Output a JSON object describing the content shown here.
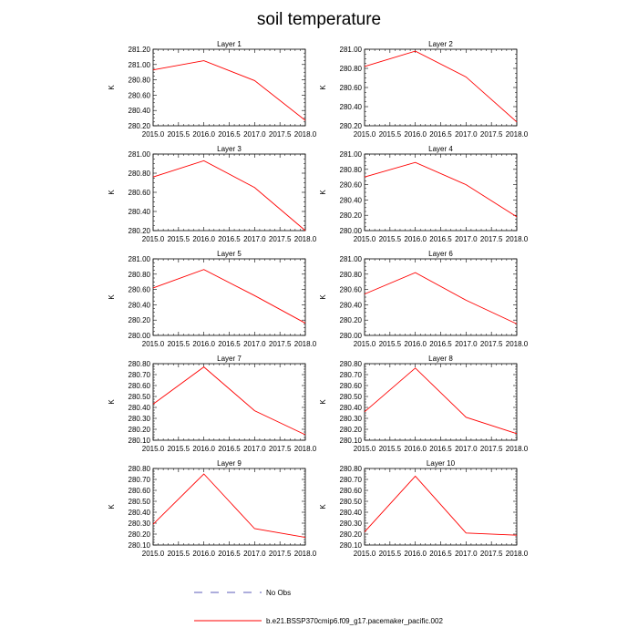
{
  "figure": {
    "title": "soil temperature"
  },
  "legend": {
    "obs_label": "No Obs",
    "model_label": "b.e21.BSSP370cmip6.f09_g17.pacemaker_pacific.002",
    "obs_color": "#5b5bb8",
    "model_color": "#ff0000"
  },
  "chart_data": [
    {
      "type": "line",
      "title": "Layer 1",
      "xlabel": "",
      "ylabel": "K",
      "xlim": [
        2015,
        2018
      ],
      "ylim": [
        280.2,
        281.2
      ],
      "xticks": [
        2015,
        2015.5,
        2016,
        2016.5,
        2017,
        2017.5,
        2018
      ],
      "yticks": [
        280.2,
        280.4,
        280.6,
        280.8,
        281.0,
        281.2
      ],
      "series": [
        {
          "name": "b.e21.BSSP370cmip6.f09_g17.pacemaker_pacific.002",
          "x": [
            2015,
            2016,
            2017,
            2018
          ],
          "y": [
            280.93,
            281.05,
            280.79,
            280.27
          ]
        }
      ]
    },
    {
      "type": "line",
      "title": "Layer 2",
      "xlabel": "",
      "ylabel": "K",
      "xlim": [
        2015,
        2018
      ],
      "ylim": [
        280.2,
        281.0
      ],
      "xticks": [
        2015,
        2015.5,
        2016,
        2016.5,
        2017,
        2017.5,
        2018
      ],
      "yticks": [
        280.2,
        280.4,
        280.6,
        280.8,
        281.0
      ],
      "series": [
        {
          "name": "b.e21.BSSP370cmip6.f09_g17.pacemaker_pacific.002",
          "x": [
            2015,
            2016,
            2017,
            2018
          ],
          "y": [
            280.82,
            280.98,
            280.71,
            280.24
          ]
        }
      ]
    },
    {
      "type": "line",
      "title": "Layer 3",
      "xlabel": "",
      "ylabel": "K",
      "xlim": [
        2015,
        2018
      ],
      "ylim": [
        280.2,
        281.0
      ],
      "xticks": [
        2015,
        2015.5,
        2016,
        2016.5,
        2017,
        2017.5,
        2018
      ],
      "yticks": [
        280.2,
        280.4,
        280.6,
        280.8,
        281.0
      ],
      "series": [
        {
          "name": "b.e21.BSSP370cmip6.f09_g17.pacemaker_pacific.002",
          "x": [
            2015,
            2016,
            2017,
            2018
          ],
          "y": [
            280.76,
            280.93,
            280.65,
            280.2
          ]
        }
      ]
    },
    {
      "type": "line",
      "title": "Layer 4",
      "xlabel": "",
      "ylabel": "K",
      "xlim": [
        2015,
        2018
      ],
      "ylim": [
        280.0,
        281.0
      ],
      "xticks": [
        2015,
        2015.5,
        2016,
        2016.5,
        2017,
        2017.5,
        2018
      ],
      "yticks": [
        280.0,
        280.2,
        280.4,
        280.6,
        280.8,
        281.0
      ],
      "series": [
        {
          "name": "b.e21.BSSP370cmip6.f09_g17.pacemaker_pacific.002",
          "x": [
            2015,
            2016,
            2017,
            2018
          ],
          "y": [
            280.7,
            280.89,
            280.6,
            280.18
          ]
        }
      ]
    },
    {
      "type": "line",
      "title": "Layer 5",
      "xlabel": "",
      "ylabel": "K",
      "xlim": [
        2015,
        2018
      ],
      "ylim": [
        280.0,
        281.0
      ],
      "xticks": [
        2015,
        2015.5,
        2016,
        2016.5,
        2017,
        2017.5,
        2018
      ],
      "yticks": [
        280.0,
        280.2,
        280.4,
        280.6,
        280.8,
        281.0
      ],
      "series": [
        {
          "name": "b.e21.BSSP370cmip6.f09_g17.pacemaker_pacific.002",
          "x": [
            2015,
            2016,
            2017,
            2018
          ],
          "y": [
            280.62,
            280.86,
            280.52,
            280.16
          ]
        }
      ]
    },
    {
      "type": "line",
      "title": "Layer 6",
      "xlabel": "",
      "ylabel": "K",
      "xlim": [
        2015,
        2018
      ],
      "ylim": [
        280.0,
        281.0
      ],
      "xticks": [
        2015,
        2015.5,
        2016,
        2016.5,
        2017,
        2017.5,
        2018
      ],
      "yticks": [
        280.0,
        280.2,
        280.4,
        280.6,
        280.8,
        281.0
      ],
      "series": [
        {
          "name": "b.e21.BSSP370cmip6.f09_g17.pacemaker_pacific.002",
          "x": [
            2015,
            2016,
            2017,
            2018
          ],
          "y": [
            280.54,
            280.82,
            280.46,
            280.15
          ]
        }
      ]
    },
    {
      "type": "line",
      "title": "Layer 7",
      "xlabel": "",
      "ylabel": "K",
      "xlim": [
        2015,
        2018
      ],
      "ylim": [
        280.1,
        280.8
      ],
      "xticks": [
        2015,
        2015.5,
        2016,
        2016.5,
        2017,
        2017.5,
        2018
      ],
      "yticks": [
        280.1,
        280.2,
        280.3,
        280.4,
        280.5,
        280.6,
        280.7,
        280.8
      ],
      "series": [
        {
          "name": "b.e21.BSSP370cmip6.f09_g17.pacemaker_pacific.002",
          "x": [
            2015,
            2016,
            2017,
            2018
          ],
          "y": [
            280.43,
            280.77,
            280.37,
            280.15
          ]
        }
      ]
    },
    {
      "type": "line",
      "title": "Layer 8",
      "xlabel": "",
      "ylabel": "K",
      "xlim": [
        2015,
        2018
      ],
      "ylim": [
        280.1,
        280.8
      ],
      "xticks": [
        2015,
        2015.5,
        2016,
        2016.5,
        2017,
        2017.5,
        2018
      ],
      "yticks": [
        280.1,
        280.2,
        280.3,
        280.4,
        280.5,
        280.6,
        280.7,
        280.8
      ],
      "series": [
        {
          "name": "b.e21.BSSP370cmip6.f09_g17.pacemaker_pacific.002",
          "x": [
            2015,
            2016,
            2017,
            2018
          ],
          "y": [
            280.36,
            280.76,
            280.31,
            280.16
          ]
        }
      ]
    },
    {
      "type": "line",
      "title": "Layer 9",
      "xlabel": "",
      "ylabel": "K",
      "xlim": [
        2015,
        2018
      ],
      "ylim": [
        280.1,
        280.8
      ],
      "xticks": [
        2015,
        2015.5,
        2016,
        2016.5,
        2017,
        2017.5,
        2018
      ],
      "yticks": [
        280.1,
        280.2,
        280.3,
        280.4,
        280.5,
        280.6,
        280.7,
        280.8
      ],
      "series": [
        {
          "name": "b.e21.BSSP370cmip6.f09_g17.pacemaker_pacific.002",
          "x": [
            2015,
            2016,
            2017,
            2018
          ],
          "y": [
            280.29,
            280.75,
            280.25,
            280.17
          ]
        }
      ]
    },
    {
      "type": "line",
      "title": "Layer 10",
      "xlabel": "",
      "ylabel": "K",
      "xlim": [
        2015,
        2018
      ],
      "ylim": [
        280.1,
        280.8
      ],
      "xticks": [
        2015,
        2015.5,
        2016,
        2016.5,
        2017,
        2017.5,
        2018
      ],
      "yticks": [
        280.1,
        280.2,
        280.3,
        280.4,
        280.5,
        280.6,
        280.7,
        280.8
      ],
      "series": [
        {
          "name": "b.e21.BSSP370cmip6.f09_g17.pacemaker_pacific.002",
          "x": [
            2015,
            2016,
            2017,
            2018
          ],
          "y": [
            280.22,
            280.73,
            280.21,
            280.19
          ]
        }
      ]
    }
  ]
}
